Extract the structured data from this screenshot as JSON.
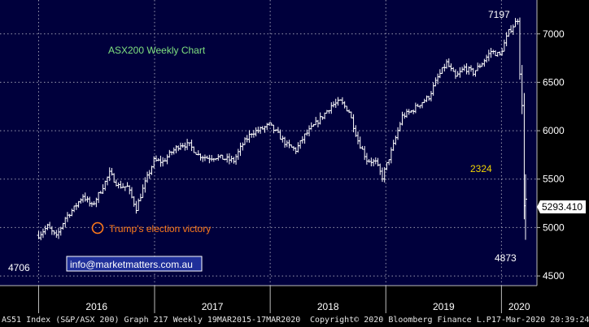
{
  "chart_data": {
    "type": "ohlc-bar",
    "title": "ASX200 Weekly Chart",
    "ylim": [
      4400,
      7350
    ],
    "yticks": [
      "4500",
      "5000",
      "5500",
      "6000",
      "6500",
      "7000"
    ],
    "xticks": [
      "2016",
      "2017",
      "2018",
      "2019",
      "2020"
    ],
    "last_price_label": "5293.410",
    "annotations": {
      "high_label": "7197",
      "low_2016_label": "4706",
      "low_2020_label": "4873",
      "drop_label": "2324",
      "event_label": "Trump's election victory",
      "website": "info@marketmatters.com.au"
    },
    "series": [
      {
        "x": "2016-01-01",
        "y": 4920
      },
      {
        "x": "2016-01-29",
        "y": 5010
      },
      {
        "x": "2016-02-26",
        "y": 4900
      },
      {
        "x": "2016-03-25",
        "y": 5100
      },
      {
        "x": "2016-04-22",
        "y": 5200
      },
      {
        "x": "2016-05-20",
        "y": 5330
      },
      {
        "x": "2016-06-17",
        "y": 5220
      },
      {
        "x": "2016-07-15",
        "y": 5380
      },
      {
        "x": "2016-08-12",
        "y": 5560
      },
      {
        "x": "2016-09-09",
        "y": 5430
      },
      {
        "x": "2016-10-07",
        "y": 5420
      },
      {
        "x": "2016-11-04",
        "y": 5200
      },
      {
        "x": "2016-12-02",
        "y": 5460
      },
      {
        "x": "2016-12-30",
        "y": 5690
      },
      {
        "x": "2017-01-27",
        "y": 5680
      },
      {
        "x": "2017-02-24",
        "y": 5780
      },
      {
        "x": "2017-03-24",
        "y": 5860
      },
      {
        "x": "2017-04-21",
        "y": 5850
      },
      {
        "x": "2017-05-19",
        "y": 5750
      },
      {
        "x": "2017-06-16",
        "y": 5720
      },
      {
        "x": "2017-07-14",
        "y": 5730
      },
      {
        "x": "2017-08-11",
        "y": 5710
      },
      {
        "x": "2017-09-08",
        "y": 5690
      },
      {
        "x": "2017-10-06",
        "y": 5860
      },
      {
        "x": "2017-11-03",
        "y": 5980
      },
      {
        "x": "2017-12-01",
        "y": 6010
      },
      {
        "x": "2017-12-29",
        "y": 6060
      },
      {
        "x": "2018-01-26",
        "y": 5960
      },
      {
        "x": "2018-02-23",
        "y": 5850
      },
      {
        "x": "2018-03-23",
        "y": 5800
      },
      {
        "x": "2018-04-20",
        "y": 5950
      },
      {
        "x": "2018-05-18",
        "y": 6050
      },
      {
        "x": "2018-06-15",
        "y": 6150
      },
      {
        "x": "2018-07-13",
        "y": 6260
      },
      {
        "x": "2018-08-10",
        "y": 6300
      },
      {
        "x": "2018-09-07",
        "y": 6200
      },
      {
        "x": "2018-10-05",
        "y": 5900
      },
      {
        "x": "2018-11-02",
        "y": 5700
      },
      {
        "x": "2018-11-30",
        "y": 5670
      },
      {
        "x": "2018-12-21",
        "y": 5520
      },
      {
        "x": "2019-01-25",
        "y": 5850
      },
      {
        "x": "2019-02-22",
        "y": 6150
      },
      {
        "x": "2019-03-22",
        "y": 6200
      },
      {
        "x": "2019-04-19",
        "y": 6280
      },
      {
        "x": "2019-05-17",
        "y": 6350
      },
      {
        "x": "2019-06-14",
        "y": 6550
      },
      {
        "x": "2019-07-12",
        "y": 6700
      },
      {
        "x": "2019-08-09",
        "y": 6550
      },
      {
        "x": "2019-09-06",
        "y": 6650
      },
      {
        "x": "2019-10-04",
        "y": 6600
      },
      {
        "x": "2019-11-01",
        "y": 6700
      },
      {
        "x": "2019-11-29",
        "y": 6820
      },
      {
        "x": "2019-12-27",
        "y": 6780
      },
      {
        "x": "2020-01-24",
        "y": 7020
      },
      {
        "x": "2020-02-21",
        "y": 7150
      },
      {
        "x": "2020-03-06",
        "y": 6200
      },
      {
        "x": "2020-03-13",
        "y": 5300
      },
      {
        "x": "2020-03-17",
        "y": 5293
      }
    ]
  },
  "footer": {
    "ticker": "AS51 Index (S&P/ASX 200) Graph 217  Weekly 19MAR2015-17MAR2020",
    "copyright": "Copyright© 2020 Bloomberg Finance L.P.",
    "timestamp": "17-Mar-2020 20:39:24"
  },
  "colors": {
    "background": "#000000",
    "plot_background": "#00003c",
    "grid": "#9a9ab0",
    "bars": "#ffffff",
    "title": "#7fe07f",
    "drop_label": "#f2d400",
    "event_marker": "#ff7a1a",
    "website_box": "#1f2f9a"
  }
}
